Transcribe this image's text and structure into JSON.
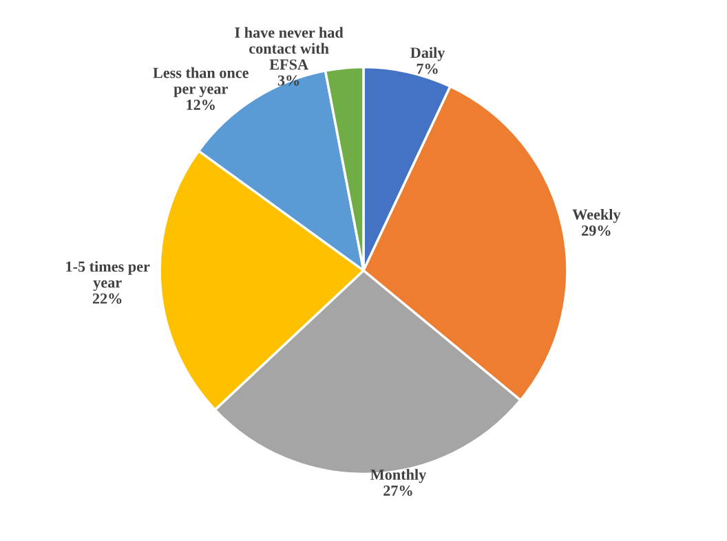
{
  "chart_data": {
    "type": "pie",
    "categories": [
      "Daily",
      "Weekly",
      "Monthly",
      "1-5 times per year",
      "Less than once per year",
      "I have never had contact with EFSA"
    ],
    "values": [
      7,
      29,
      27,
      22,
      12,
      3
    ],
    "value_labels": [
      "7%",
      "29%",
      "27%",
      "22%",
      "12%",
      "3%"
    ],
    "colors": [
      "#4472c4",
      "#ed7d31",
      "#a5a5a5",
      "#ffc000",
      "#5b9bd5",
      "#70ad47"
    ],
    "legend": false
  }
}
